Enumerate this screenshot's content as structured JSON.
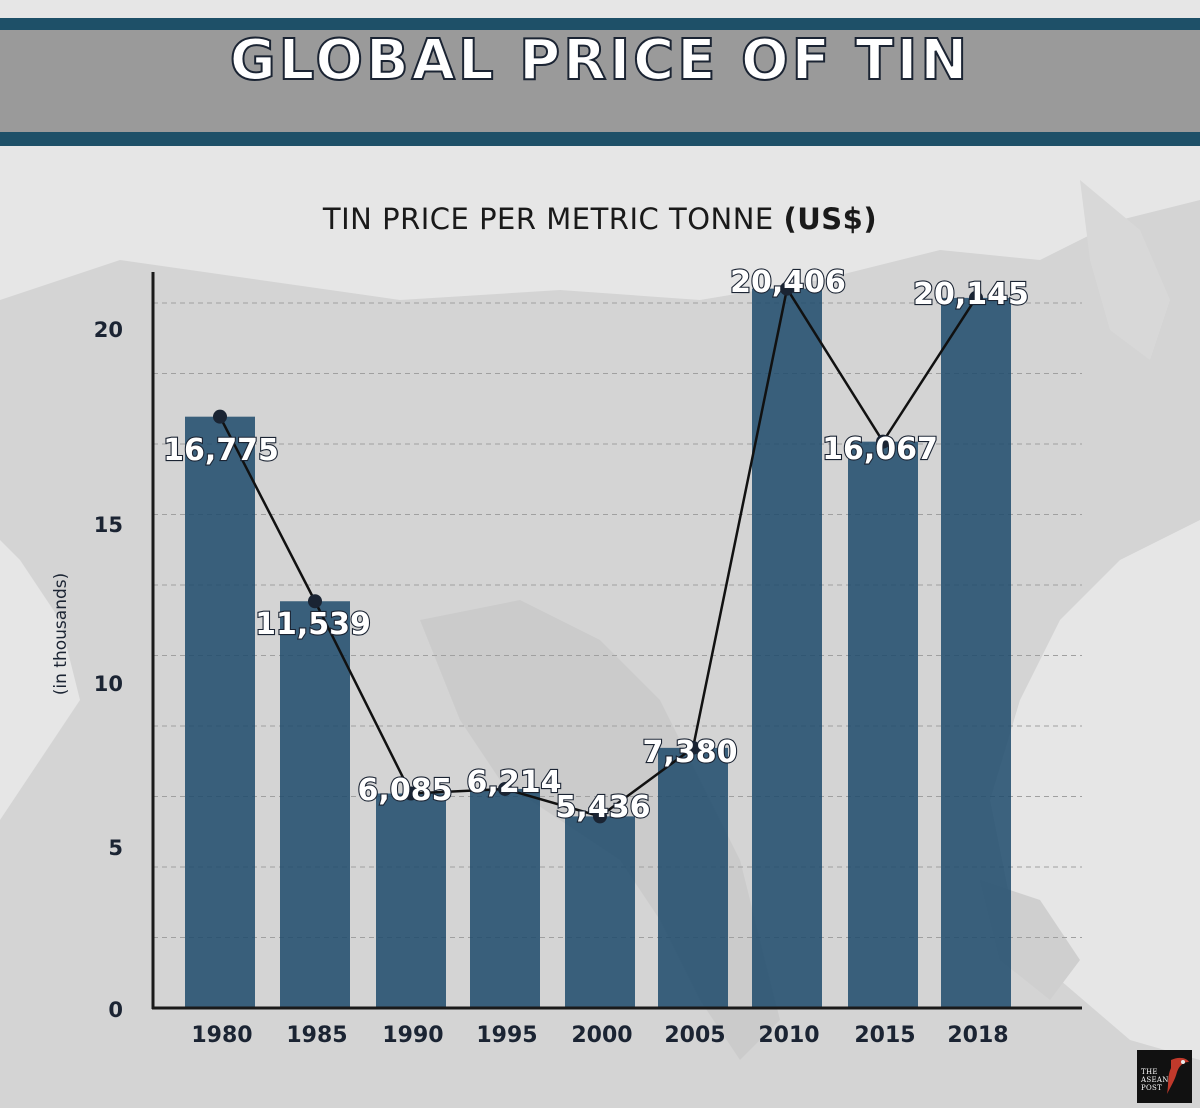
{
  "header": {
    "title": "GLOBAL PRICE OF TIN"
  },
  "chart_data": {
    "type": "bar",
    "title_main": "TIN PRICE PER METRIC TONNE ",
    "title_unit": "(US$)",
    "ylabel": "(in thousands)",
    "xlabel": "",
    "categories": [
      "1980",
      "1985",
      "1990",
      "1995",
      "2000",
      "2005",
      "2010",
      "2015",
      "2018"
    ],
    "values": [
      16775,
      11539,
      6085,
      6214,
      5436,
      7380,
      20406,
      16067,
      20145
    ],
    "data_labels": [
      "16,775",
      "11,539",
      "6,085",
      "6,214",
      "5,436",
      "7,380",
      "20,406",
      "16,067",
      "20,145"
    ],
    "yticks": [
      0,
      5,
      10,
      15,
      20
    ],
    "ylim": [
      0,
      21.5
    ],
    "overlay": "line connecting bar tops",
    "grid": "dashed horizontal",
    "colors": {
      "bar": "#1d4a6b",
      "line": "#111111",
      "marker": "#1a2433",
      "grid": "#a0a0a0",
      "axis": "#1a1a1a"
    }
  },
  "logo": {
    "text": "THE ASEAN POST"
  }
}
